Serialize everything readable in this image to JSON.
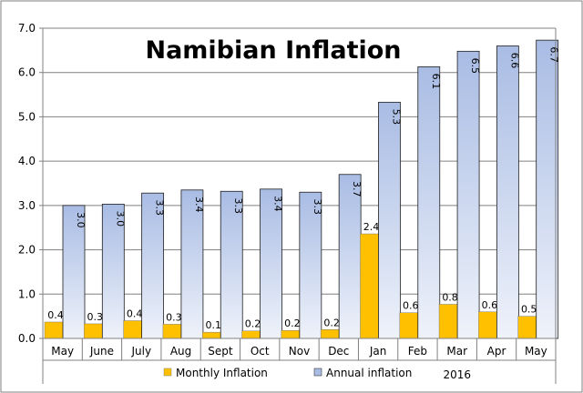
{
  "chart_data": {
    "type": "bar",
    "title": "Namibian Inflation",
    "categories": [
      "May",
      "June",
      "July",
      "Aug",
      "Sept",
      "Oct",
      "Nov",
      "Dec",
      "Jan",
      "Feb",
      "Mar",
      "Apr",
      "May"
    ],
    "year_label": "2016",
    "series": [
      {
        "name": "Monthly Inflation",
        "color": "#FFC000",
        "values": [
          0.37,
          0.33,
          0.4,
          0.32,
          0.14,
          0.17,
          0.18,
          0.2,
          2.36,
          0.58,
          0.77,
          0.6,
          0.5
        ],
        "labels": [
          "0.4",
          "0.3",
          "0.4",
          "0.3",
          "0.1",
          "0.2",
          "0.2",
          "0.2",
          "2.4",
          "0.6",
          "0.8",
          "0.6",
          "0.5"
        ]
      },
      {
        "name": "Annual inflation",
        "color": "#A9BCE4",
        "values": [
          3.0,
          3.03,
          3.28,
          3.35,
          3.32,
          3.37,
          3.3,
          3.7,
          5.33,
          6.13,
          6.48,
          6.6,
          6.73
        ],
        "labels": [
          "3.0",
          "3.0",
          "3.3",
          "3.4",
          "3.3",
          "3.4",
          "3.3",
          "3.7",
          "5.3",
          "6.1",
          "6.5",
          "6.6",
          "6.7"
        ]
      }
    ],
    "y_ticks": [
      "0.0",
      "1.0",
      "2.0",
      "3.0",
      "4.0",
      "5.0",
      "6.0",
      "7.0"
    ],
    "ylim": [
      0,
      7
    ],
    "xlabel": "",
    "ylabel": "",
    "grid": true,
    "legend": "bottom"
  }
}
